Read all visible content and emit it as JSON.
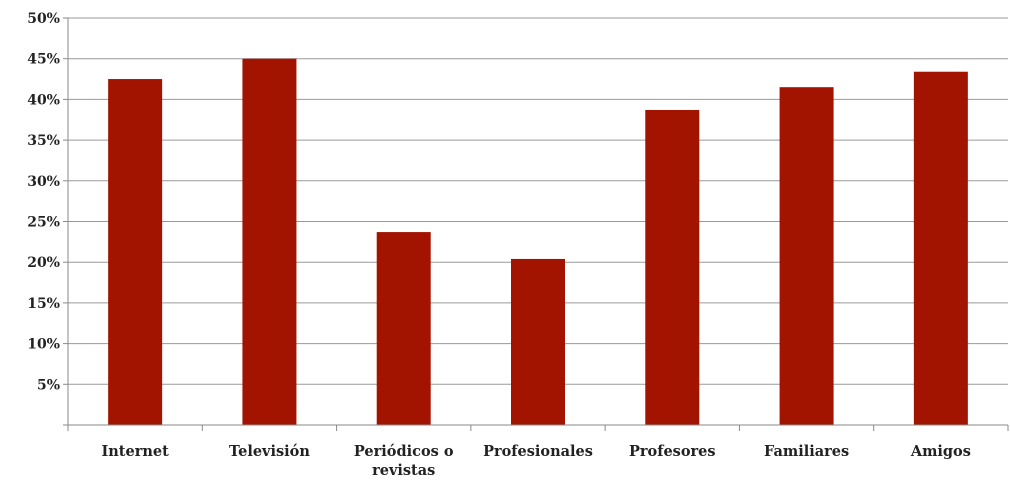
{
  "chart_data": {
    "type": "bar",
    "title": "",
    "xlabel": "",
    "ylabel": "",
    "categories": [
      [
        "Internet"
      ],
      [
        "Televisión"
      ],
      [
        "Periódicos o",
        "revistas"
      ],
      [
        "Profesionales"
      ],
      [
        "Profesores"
      ],
      [
        "Familiares"
      ],
      [
        "Amigos"
      ]
    ],
    "values": [
      42.5,
      45.0,
      23.7,
      20.4,
      38.7,
      41.5,
      43.4
    ],
    "ylim": [
      0,
      50
    ],
    "ytick_step": 5,
    "ytick_labels": [
      "",
      "5%",
      "10%",
      "15%",
      "20%",
      "25%",
      "30%",
      "35%",
      "40%",
      "45%",
      "50%"
    ],
    "bar_color": "#a31400",
    "grid": true,
    "legend": "none"
  }
}
